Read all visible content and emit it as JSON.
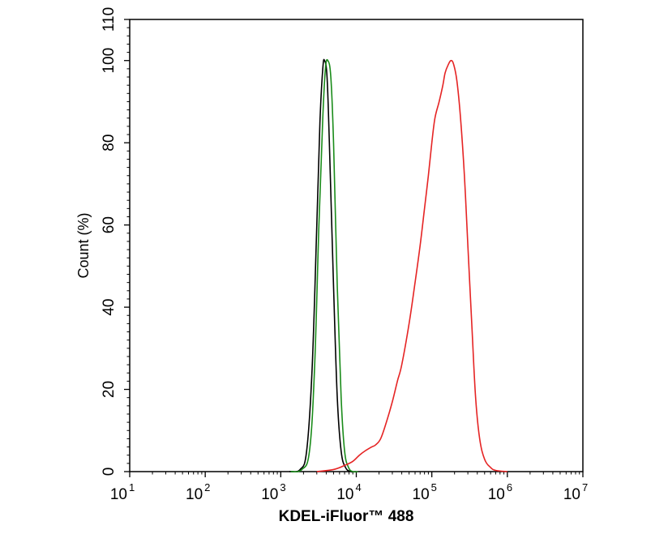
{
  "chart_data": {
    "type": "line",
    "title": "",
    "xlabel": "KDEL-iFluor™ 488",
    "ylabel": "Count  (%)",
    "x_scale": "log",
    "xlim": [
      10,
      10000000
    ],
    "ylim": [
      0,
      110
    ],
    "x_ticks": [
      {
        "base": "10",
        "exp": "1",
        "value": 10
      },
      {
        "base": "10",
        "exp": "2",
        "value": 100
      },
      {
        "base": "10",
        "exp": "3",
        "value": 1000
      },
      {
        "base": "10",
        "exp": "4",
        "value": 10000
      },
      {
        "base": "10",
        "exp": "5",
        "value": 100000
      },
      {
        "base": "10",
        "exp": "6",
        "value": 1000000
      },
      {
        "base": "10",
        "exp": "7",
        "value": 10000000
      }
    ],
    "y_ticks": [
      "0",
      "20",
      "40",
      "60",
      "80",
      "100",
      "110"
    ],
    "y_tick_values": [
      0,
      20,
      40,
      60,
      80,
      100,
      110
    ],
    "grid": false,
    "legend": "none",
    "series": [
      {
        "color": "#000000",
        "points": [
          [
            1300,
            0
          ],
          [
            1800,
            0.5
          ],
          [
            2200,
            5
          ],
          [
            2600,
            25
          ],
          [
            3000,
            60
          ],
          [
            3300,
            85
          ],
          [
            3600,
            98
          ],
          [
            3800,
            100
          ],
          [
            4100,
            96
          ],
          [
            4400,
            80
          ],
          [
            5000,
            45
          ],
          [
            5600,
            18
          ],
          [
            6300,
            5
          ],
          [
            7200,
            1
          ],
          [
            8500,
            0
          ],
          [
            10000,
            0
          ]
        ]
      },
      {
        "color": "#1a8c1a",
        "points": [
          [
            1350,
            0
          ],
          [
            1900,
            0.5
          ],
          [
            2400,
            5
          ],
          [
            2800,
            25
          ],
          [
            3200,
            60
          ],
          [
            3600,
            86
          ],
          [
            3900,
            98
          ],
          [
            4200,
            100
          ],
          [
            4600,
            96
          ],
          [
            5000,
            80
          ],
          [
            5600,
            45
          ],
          [
            6300,
            18
          ],
          [
            7000,
            5
          ],
          [
            7900,
            1
          ],
          [
            9000,
            0
          ],
          [
            10500,
            0
          ]
        ]
      },
      {
        "color": "#e52424",
        "points": [
          [
            3000,
            0
          ],
          [
            5000,
            0.5
          ],
          [
            7000,
            1.5
          ],
          [
            9000,
            2.5
          ],
          [
            11000,
            4
          ],
          [
            13000,
            5
          ],
          [
            16000,
            6
          ],
          [
            18000,
            6.5
          ],
          [
            21000,
            8
          ],
          [
            25000,
            12
          ],
          [
            30000,
            17
          ],
          [
            35000,
            22
          ],
          [
            40000,
            26
          ],
          [
            50000,
            36
          ],
          [
            60000,
            46
          ],
          [
            70000,
            55
          ],
          [
            80000,
            64
          ],
          [
            90000,
            72
          ],
          [
            100000,
            80
          ],
          [
            110000,
            86
          ],
          [
            125000,
            90
          ],
          [
            140000,
            94
          ],
          [
            150000,
            97
          ],
          [
            165000,
            99
          ],
          [
            180000,
            100
          ],
          [
            195000,
            99
          ],
          [
            215000,
            95
          ],
          [
            240000,
            86
          ],
          [
            270000,
            72
          ],
          [
            300000,
            55
          ],
          [
            340000,
            35
          ],
          [
            380000,
            18
          ],
          [
            430000,
            8
          ],
          [
            500000,
            3
          ],
          [
            600000,
            1
          ],
          [
            700000,
            0.3
          ],
          [
            1000000,
            0
          ]
        ]
      }
    ]
  }
}
